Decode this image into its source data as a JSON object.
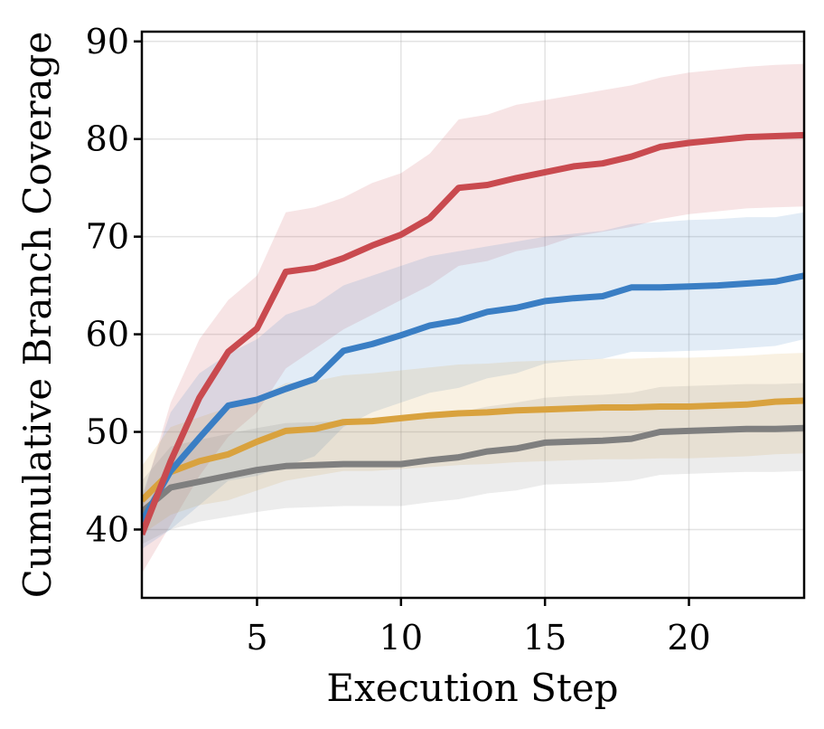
{
  "chart_data": {
    "type": "line",
    "title": "",
    "xlabel": "Execution Step",
    "ylabel": "Cumulative Branch Coverage",
    "xlim": [
      1,
      24
    ],
    "ylim": [
      33,
      91
    ],
    "xticks": [
      5,
      10,
      15,
      20
    ],
    "yticks": [
      40,
      50,
      60,
      70,
      80,
      90
    ],
    "grid": true,
    "x": [
      1,
      2,
      3,
      4,
      5,
      6,
      7,
      8,
      9,
      10,
      11,
      12,
      13,
      14,
      15,
      16,
      17,
      18,
      19,
      20,
      21,
      22,
      23,
      24
    ],
    "series": [
      {
        "name": "red",
        "color": "#c94a4f",
        "values": [
          39.5,
          47.0,
          53.5,
          58.2,
          60.6,
          66.4,
          66.8,
          67.8,
          69.1,
          70.2,
          71.9,
          75.0,
          75.3,
          76.0,
          76.6,
          77.2,
          77.5,
          78.2,
          79.2,
          79.6,
          79.9,
          80.2,
          80.3,
          80.4
        ],
        "lower": [
          35.5,
          40.5,
          45.5,
          49.5,
          52.0,
          56.5,
          58.5,
          60.5,
          62.0,
          63.5,
          65.0,
          67.0,
          67.5,
          68.5,
          69.0,
          70.0,
          70.5,
          71.0,
          71.8,
          72.3,
          72.6,
          72.9,
          73.0,
          73.1
        ],
        "upper": [
          43.0,
          53.0,
          59.5,
          63.5,
          66.0,
          72.5,
          73.0,
          74.0,
          75.5,
          76.5,
          78.5,
          82.0,
          82.5,
          83.5,
          84.0,
          84.5,
          85.0,
          85.5,
          86.3,
          86.8,
          87.1,
          87.4,
          87.6,
          87.7
        ]
      },
      {
        "name": "blue",
        "color": "#3a7ec4",
        "values": [
          40.8,
          46.0,
          49.4,
          52.7,
          53.3,
          54.4,
          55.4,
          58.3,
          59.0,
          59.9,
          60.9,
          61.4,
          62.3,
          62.7,
          63.4,
          63.7,
          63.9,
          64.8,
          64.8,
          64.9,
          65.0,
          65.2,
          65.4,
          66.0
        ],
        "lower": [
          38.0,
          40.0,
          42.5,
          45.0,
          45.5,
          46.5,
          47.5,
          50.5,
          52.0,
          53.0,
          54.0,
          54.5,
          55.5,
          56.0,
          57.0,
          57.3,
          57.5,
          58.2,
          58.2,
          58.3,
          58.4,
          58.6,
          58.8,
          59.5
        ],
        "upper": [
          43.5,
          52.0,
          56.0,
          58.0,
          59.5,
          62.0,
          63.0,
          65.0,
          66.0,
          67.0,
          68.0,
          68.5,
          69.0,
          69.5,
          70.0,
          70.3,
          70.6,
          71.3,
          71.5,
          71.7,
          71.8,
          72.0,
          72.0,
          72.5
        ]
      },
      {
        "name": "orange",
        "color": "#d9a23e",
        "values": [
          43.0,
          45.9,
          47.0,
          47.7,
          49.0,
          50.1,
          50.3,
          51.0,
          51.1,
          51.4,
          51.7,
          51.9,
          52.0,
          52.2,
          52.3,
          52.4,
          52.5,
          52.5,
          52.6,
          52.6,
          52.7,
          52.8,
          53.1,
          53.2
        ],
        "lower": [
          39.5,
          41.5,
          42.5,
          43.0,
          44.0,
          45.0,
          45.5,
          46.0,
          46.0,
          46.2,
          46.4,
          46.6,
          46.7,
          46.9,
          47.0,
          47.1,
          47.2,
          47.2,
          47.3,
          47.3,
          47.4,
          47.5,
          47.7,
          47.8
        ],
        "upper": [
          46.5,
          50.5,
          51.5,
          52.5,
          53.5,
          55.0,
          55.2,
          55.8,
          56.0,
          56.3,
          56.6,
          56.9,
          57.0,
          57.2,
          57.3,
          57.4,
          57.5,
          57.5,
          57.6,
          57.6,
          57.7,
          57.8,
          58.0,
          58.1
        ]
      },
      {
        "name": "gray",
        "color": "#7f7f7f",
        "values": [
          41.8,
          44.3,
          44.9,
          45.5,
          46.1,
          46.5,
          46.6,
          46.7,
          46.7,
          46.7,
          47.1,
          47.4,
          48.0,
          48.3,
          48.9,
          49.0,
          49.1,
          49.3,
          50.0,
          50.1,
          50.2,
          50.3,
          50.3,
          50.4
        ],
        "lower": [
          38.5,
          40.0,
          40.8,
          41.3,
          41.8,
          42.2,
          42.3,
          42.4,
          42.4,
          42.4,
          42.8,
          43.1,
          43.7,
          44.0,
          44.6,
          44.7,
          44.8,
          45.0,
          45.6,
          45.7,
          45.8,
          45.9,
          45.9,
          46.0
        ],
        "upper": [
          45.0,
          48.5,
          49.2,
          49.8,
          50.4,
          50.9,
          51.0,
          51.1,
          51.1,
          51.2,
          51.6,
          52.0,
          52.6,
          53.0,
          53.5,
          53.7,
          53.8,
          54.0,
          54.6,
          54.7,
          54.8,
          54.9,
          54.9,
          55.0
        ]
      }
    ]
  }
}
